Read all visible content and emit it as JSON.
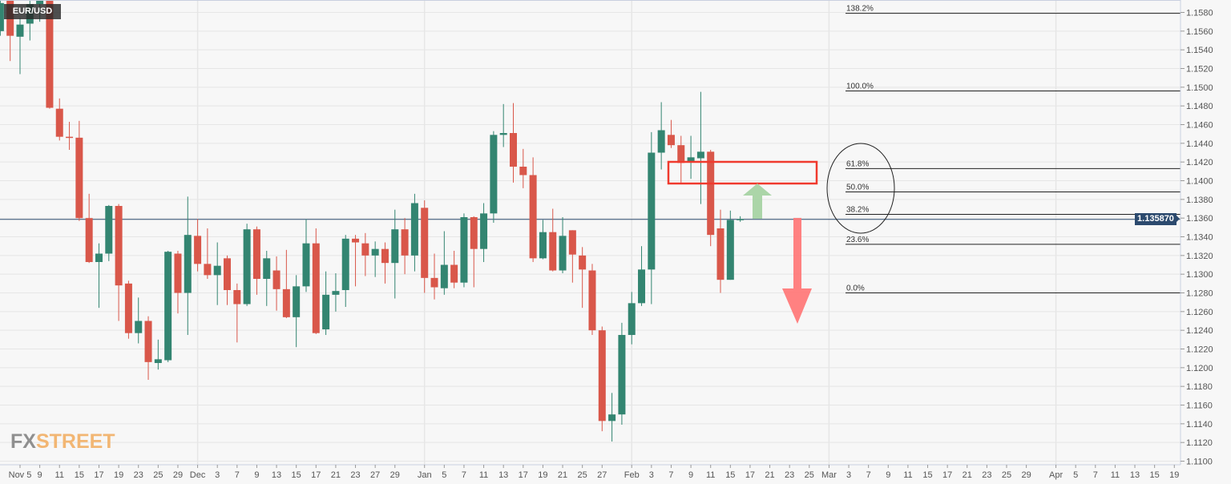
{
  "chart_data": {
    "type": "candlestick",
    "symbol": "EUR/USD",
    "current_price": "1.135870",
    "ylim": [
      1.11,
      1.159
    ],
    "y_ticks": [
      "1.1580",
      "1.1560",
      "1.1540",
      "1.1520",
      "1.1500",
      "1.1480",
      "1.1460",
      "1.1440",
      "1.1420",
      "1.1400",
      "1.1380",
      "1.1360",
      "1.1340",
      "1.1320",
      "1.1300",
      "1.1280",
      "1.1260",
      "1.1240",
      "1.1220",
      "1.1200",
      "1.1180",
      "1.1160",
      "1.1140",
      "1.1120",
      "1.1100"
    ],
    "x_labels": [
      [
        "2021-11-05",
        "Nov 5"
      ],
      [
        "2021-11-09",
        "9"
      ],
      [
        "2021-11-11",
        "11"
      ],
      [
        "2021-11-15",
        "15"
      ],
      [
        "2021-11-17",
        "17"
      ],
      [
        "2021-11-19",
        "19"
      ],
      [
        "2021-11-23",
        "23"
      ],
      [
        "2021-11-25",
        "25"
      ],
      [
        "2021-11-29",
        "29"
      ],
      [
        "2021-12-01",
        "Dec"
      ],
      [
        "2021-12-03",
        "3"
      ],
      [
        "2021-12-07",
        "7"
      ],
      [
        "2021-12-09",
        "9"
      ],
      [
        "2021-12-13",
        "13"
      ],
      [
        "2021-12-15",
        "15"
      ],
      [
        "2021-12-17",
        "17"
      ],
      [
        "2021-12-21",
        "21"
      ],
      [
        "2021-12-23",
        "23"
      ],
      [
        "2021-12-27",
        "27"
      ],
      [
        "2021-12-29",
        "29"
      ],
      [
        "2022-01-03",
        "Jan"
      ],
      [
        "2022-01-05",
        "5"
      ],
      [
        "2022-01-07",
        "7"
      ],
      [
        "2022-01-11",
        "11"
      ],
      [
        "2022-01-13",
        "13"
      ],
      [
        "2022-01-17",
        "17"
      ],
      [
        "2022-01-19",
        "19"
      ],
      [
        "2022-01-21",
        "21"
      ],
      [
        "2022-01-25",
        "25"
      ],
      [
        "2022-01-27",
        "27"
      ],
      [
        "2022-02-01",
        "Feb"
      ],
      [
        "2022-02-03",
        "3"
      ],
      [
        "2022-02-07",
        "7"
      ],
      [
        "2022-02-09",
        "9"
      ],
      [
        "2022-02-11",
        "11"
      ],
      [
        "2022-02-15",
        "15"
      ],
      [
        "2022-02-17",
        "17"
      ],
      [
        "2022-02-21",
        "21"
      ],
      [
        "2022-02-23",
        "23"
      ],
      [
        "2022-02-25",
        "25"
      ],
      [
        "2022-03-01",
        "Mar"
      ],
      [
        "2022-03-03",
        "3"
      ],
      [
        "2022-03-07",
        "7"
      ],
      [
        "2022-03-09",
        "9"
      ],
      [
        "2022-03-11",
        "11"
      ],
      [
        "2022-03-15",
        "15"
      ],
      [
        "2022-03-17",
        "17"
      ],
      [
        "2022-03-21",
        "21"
      ],
      [
        "2022-03-23",
        "23"
      ],
      [
        "2022-03-25",
        "25"
      ],
      [
        "2022-03-29",
        "29"
      ],
      [
        "2022-04-01",
        "Apr"
      ],
      [
        "2022-04-05",
        "5"
      ],
      [
        "2022-04-07",
        "7"
      ],
      [
        "2022-04-11",
        "11"
      ],
      [
        "2022-04-13",
        "13"
      ],
      [
        "2022-04-15",
        "15"
      ],
      [
        "2022-04-19",
        "19"
      ]
    ],
    "month_gridlines": [
      "2021-12-01",
      "2022-01-03",
      "2022-02-01",
      "2022-03-01",
      "2022-04-01"
    ],
    "candles_columns": [
      "date",
      "open",
      "high",
      "low",
      "close"
    ],
    "candles": [
      [
        "2021-11-03",
        1.156,
        1.16,
        1.1555,
        1.159
      ],
      [
        "2021-11-04",
        1.16,
        1.161,
        1.1528,
        1.1555
      ],
      [
        "2021-11-05",
        1.1554,
        1.1574,
        1.1514,
        1.1567
      ],
      [
        "2021-11-08",
        1.1568,
        1.16,
        1.155,
        1.1589
      ],
      [
        "2021-11-09",
        1.1589,
        1.161,
        1.157,
        1.16
      ],
      [
        "2021-11-10",
        1.1595,
        1.161,
        1.1477,
        1.1478
      ],
      [
        "2021-11-11",
        1.1477,
        1.1488,
        1.1443,
        1.1447
      ],
      [
        "2021-11-12",
        1.1447,
        1.1463,
        1.1433,
        1.1446
      ],
      [
        "2021-11-15",
        1.1446,
        1.1464,
        1.1357,
        1.136
      ],
      [
        "2021-11-16",
        1.136,
        1.1386,
        1.1312,
        1.1313
      ],
      [
        "2021-11-17",
        1.1313,
        1.1333,
        1.1264,
        1.1322
      ],
      [
        "2021-11-18",
        1.1322,
        1.1374,
        1.1314,
        1.1373
      ],
      [
        "2021-11-19",
        1.1373,
        1.1375,
        1.125,
        1.1288
      ],
      [
        "2021-11-22",
        1.129,
        1.1293,
        1.1231,
        1.1237
      ],
      [
        "2021-11-23",
        1.1237,
        1.1275,
        1.1226,
        1.125
      ],
      [
        "2021-11-24",
        1.125,
        1.1255,
        1.1187,
        1.1206
      ],
      [
        "2021-11-25",
        1.1205,
        1.123,
        1.1198,
        1.1209
      ],
      [
        "2021-11-26",
        1.1208,
        1.1325,
        1.1206,
        1.1324
      ],
      [
        "2021-11-29",
        1.1322,
        1.1325,
        1.1258,
        1.128
      ],
      [
        "2021-11-30",
        1.128,
        1.1383,
        1.1235,
        1.1342
      ],
      [
        "2021-12-01",
        1.1341,
        1.1359,
        1.1303,
        1.1311
      ],
      [
        "2021-12-02",
        1.1311,
        1.1349,
        1.1295,
        1.1299
      ],
      [
        "2021-12-03",
        1.1299,
        1.1334,
        1.1267,
        1.1309
      ],
      [
        "2021-12-06",
        1.1317,
        1.132,
        1.1267,
        1.1283
      ],
      [
        "2021-12-07",
        1.1283,
        1.129,
        1.1227,
        1.1268
      ],
      [
        "2021-12-08",
        1.1268,
        1.1354,
        1.1266,
        1.1348
      ],
      [
        "2021-12-09",
        1.1348,
        1.1351,
        1.1278,
        1.1295
      ],
      [
        "2021-12-10",
        1.1295,
        1.1325,
        1.1266,
        1.1317
      ],
      [
        "2021-12-13",
        1.1304,
        1.1319,
        1.1261,
        1.1284
      ],
      [
        "2021-12-14",
        1.1284,
        1.1326,
        1.1253,
        1.1254
      ],
      [
        "2021-12-15",
        1.1254,
        1.1299,
        1.1222,
        1.1287
      ],
      [
        "2021-12-16",
        1.1287,
        1.1359,
        1.1281,
        1.1333
      ],
      [
        "2021-12-17",
        1.1333,
        1.1349,
        1.1236,
        1.1237
      ],
      [
        "2021-12-20",
        1.1241,
        1.1303,
        1.1235,
        1.1278
      ],
      [
        "2021-12-21",
        1.1278,
        1.1301,
        1.126,
        1.1282
      ],
      [
        "2021-12-22",
        1.1283,
        1.1342,
        1.1265,
        1.1338
      ],
      [
        "2021-12-23",
        1.1338,
        1.1342,
        1.1287,
        1.1334
      ],
      [
        "2021-12-24",
        1.1333,
        1.1344,
        1.1298,
        1.132
      ],
      [
        "2021-12-27",
        1.132,
        1.1335,
        1.1297,
        1.1327
      ],
      [
        "2021-12-28",
        1.1327,
        1.1334,
        1.129,
        1.1312
      ],
      [
        "2021-12-29",
        1.1312,
        1.1369,
        1.1274,
        1.1348
      ],
      [
        "2021-12-30",
        1.1348,
        1.136,
        1.13,
        1.132
      ],
      [
        "2021-12-31",
        1.132,
        1.1386,
        1.1303,
        1.1376
      ],
      [
        "2022-01-03",
        1.1371,
        1.1379,
        1.128,
        1.1296
      ],
      [
        "2022-01-04",
        1.1296,
        1.1322,
        1.1273,
        1.1286
      ],
      [
        "2022-01-05",
        1.1285,
        1.1346,
        1.1278,
        1.131
      ],
      [
        "2022-01-06",
        1.131,
        1.1325,
        1.1285,
        1.1291
      ],
      [
        "2022-01-07",
        1.1291,
        1.1365,
        1.1286,
        1.1361
      ],
      [
        "2022-01-10",
        1.1361,
        1.1362,
        1.1286,
        1.1327
      ],
      [
        "2022-01-11",
        1.1327,
        1.1376,
        1.1313,
        1.1365
      ],
      [
        "2022-01-12",
        1.1365,
        1.1453,
        1.1355,
        1.1449
      ],
      [
        "2022-01-13",
        1.1449,
        1.1482,
        1.1436,
        1.1451
      ],
      [
        "2022-01-14",
        1.1451,
        1.1483,
        1.1398,
        1.1415
      ],
      [
        "2022-01-17",
        1.1415,
        1.1434,
        1.1392,
        1.1406
      ],
      [
        "2022-01-18",
        1.1406,
        1.1425,
        1.1313,
        1.1317
      ],
      [
        "2022-01-19",
        1.1317,
        1.1358,
        1.1316,
        1.1345
      ],
      [
        "2022-01-20",
        1.1345,
        1.137,
        1.1303,
        1.1304
      ],
      [
        "2022-01-21",
        1.1304,
        1.1361,
        1.1301,
        1.1341
      ],
      [
        "2022-01-24",
        1.1347,
        1.1347,
        1.1291,
        1.1321
      ],
      [
        "2022-01-25",
        1.132,
        1.1329,
        1.1264,
        1.1305
      ],
      [
        "2022-01-26",
        1.1304,
        1.1311,
        1.1235,
        1.124
      ],
      [
        "2022-01-27",
        1.124,
        1.1244,
        1.1132,
        1.1143
      ],
      [
        "2022-01-28",
        1.1143,
        1.1173,
        1.1121,
        1.115
      ],
      [
        "2022-01-31",
        1.115,
        1.1248,
        1.1139,
        1.1235
      ],
      [
        "2022-02-01",
        1.1235,
        1.1281,
        1.1225,
        1.1269
      ],
      [
        "2022-02-02",
        1.1269,
        1.133,
        1.1266,
        1.1305
      ],
      [
        "2022-02-03",
        1.1305,
        1.1452,
        1.1268,
        1.143
      ],
      [
        "2022-02-04",
        1.143,
        1.1484,
        1.1412,
        1.1454
      ],
      [
        "2022-02-07",
        1.1449,
        1.1465,
        1.1435,
        1.1438
      ],
      [
        "2022-02-08",
        1.1438,
        1.1448,
        1.1398,
        1.1419
      ],
      [
        "2022-02-09",
        1.1421,
        1.1448,
        1.1402,
        1.1425
      ],
      [
        "2022-02-10",
        1.1424,
        1.1495,
        1.1375,
        1.1431
      ],
      [
        "2022-02-11",
        1.1431,
        1.1433,
        1.133,
        1.1342
      ],
      [
        "2022-02-14",
        1.1349,
        1.1369,
        1.128,
        1.1294
      ],
      [
        "2022-02-15",
        1.1294,
        1.1368,
        1.1294,
        1.1358
      ],
      [
        "2022-02-16",
        1.1358,
        1.1362,
        1.1356,
        1.1359
      ]
    ],
    "fibonacci": [
      {
        "label": "138.2%",
        "price": 1.1579
      },
      {
        "label": "100.0%",
        "price": 1.1496
      },
      {
        "label": "61.8%",
        "price": 1.1413
      },
      {
        "label": "50.0%",
        "price": 1.1388
      },
      {
        "label": "38.2%",
        "price": 1.1364
      },
      {
        "label": "23.6%",
        "price": 1.1332
      },
      {
        "label": "0.0%",
        "price": 1.128
      }
    ],
    "colors": {
      "up": "#338571",
      "down": "#d9574a",
      "grid": "#e6e6e6",
      "price_line": "#2c4a6e",
      "fib": "#222222",
      "zone": "#f03a2e",
      "arrow_up": "#a7d3a3",
      "arrow_down": "#ff7a7a"
    },
    "grid": true
  },
  "branding": {
    "logo_fx": "FX",
    "logo_street": "STREET"
  }
}
